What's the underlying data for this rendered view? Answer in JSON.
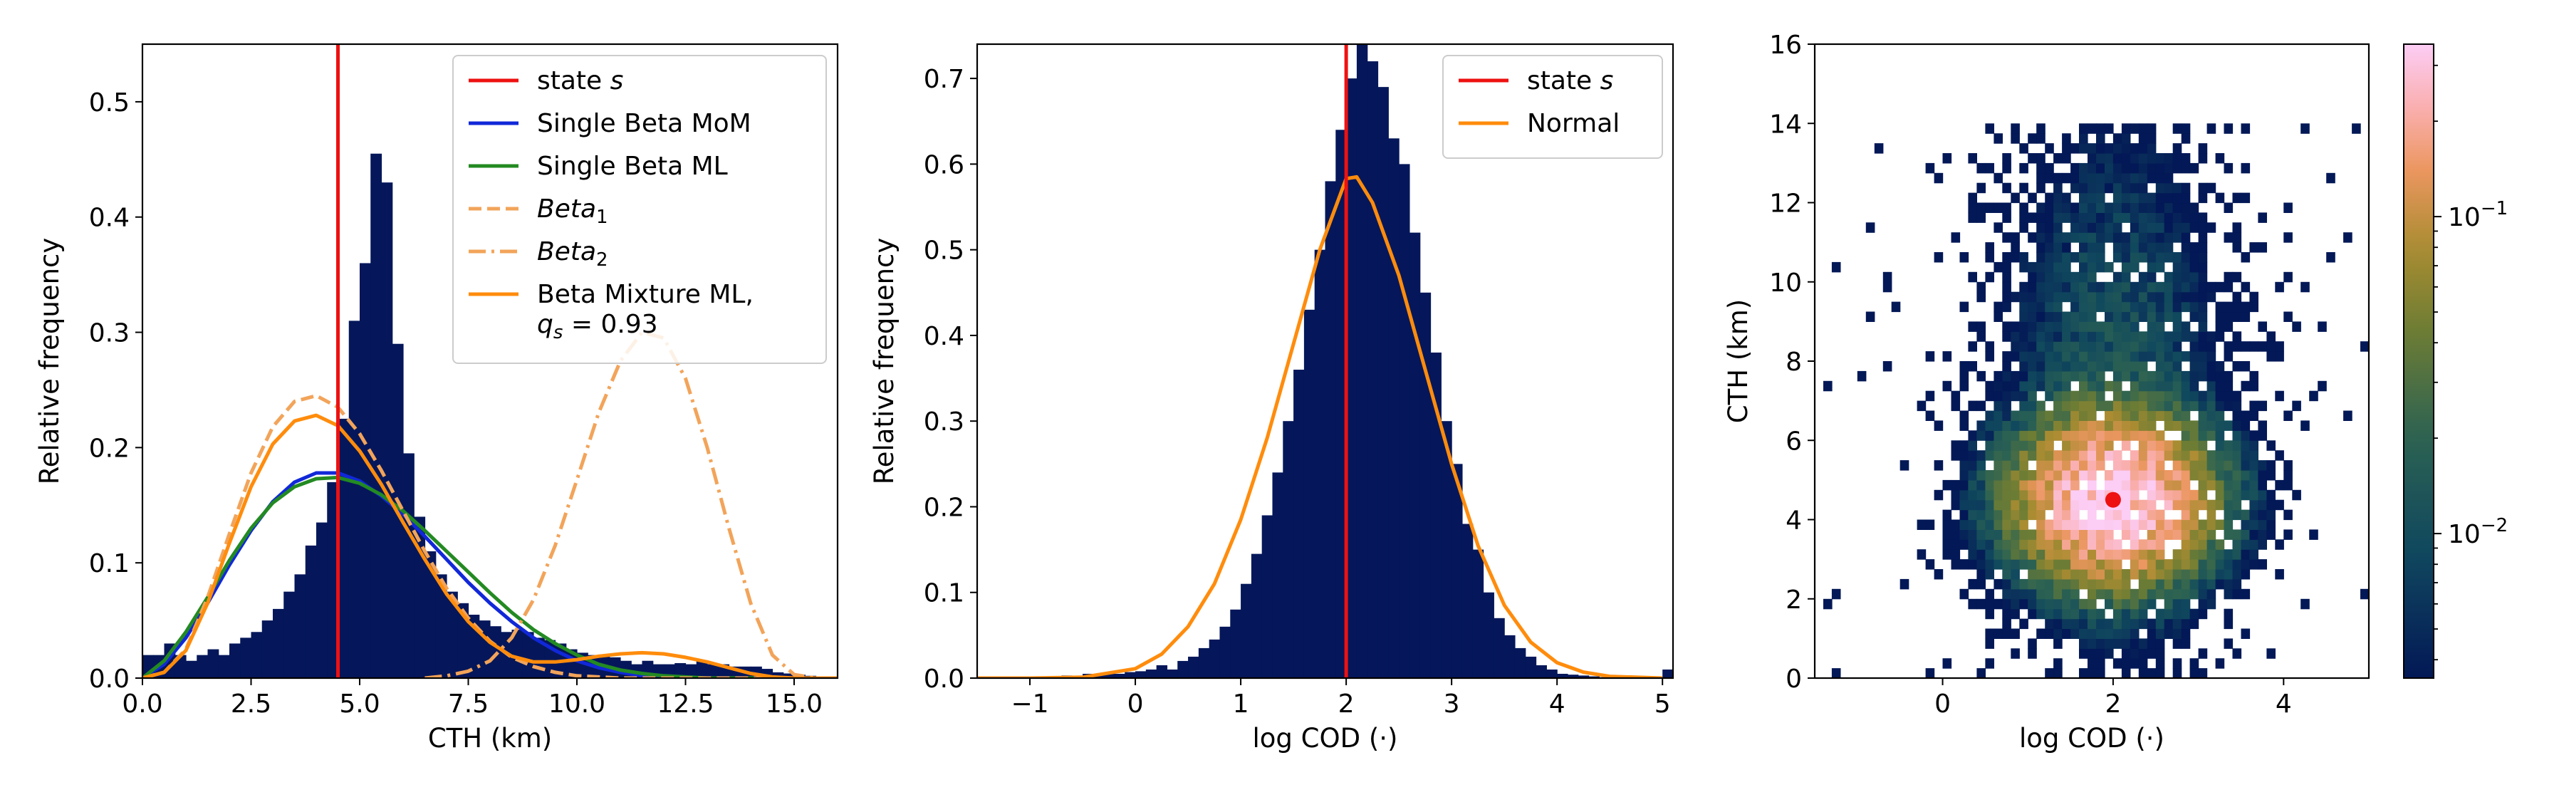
{
  "colors": {
    "hist": "#05175a",
    "state_line": "#ee1111",
    "beta_mom": "#1128d8",
    "beta_ml": "#238a22",
    "beta_components": "#f2a45a",
    "mixture": "#ff8c0c",
    "normal": "#ff8c0c",
    "marker": "#ee1111"
  },
  "chart_data": [
    {
      "type": "bar",
      "id": "cth_histogram",
      "xlabel": "CTH (km)",
      "ylabel": "Relative frequency",
      "xlim": [
        0,
        16
      ],
      "ylim": [
        0,
        0.55
      ],
      "xticks": [
        0.0,
        2.5,
        5.0,
        7.5,
        10.0,
        12.5,
        15.0
      ],
      "xtick_labels": [
        "0.0",
        "2.5",
        "5.0",
        "7.5",
        "10.0",
        "12.5",
        "15.0"
      ],
      "yticks": [
        0.0,
        0.1,
        0.2,
        0.3,
        0.4,
        0.5
      ],
      "ytick_labels": [
        "0.0",
        "0.1",
        "0.2",
        "0.3",
        "0.4",
        "0.5"
      ],
      "bin_width": 0.25,
      "bin_start": 0.0,
      "values": [
        0.02,
        0.02,
        0.03,
        0.02,
        0.015,
        0.02,
        0.025,
        0.02,
        0.03,
        0.035,
        0.04,
        0.05,
        0.06,
        0.075,
        0.09,
        0.115,
        0.135,
        0.17,
        0.225,
        0.31,
        0.36,
        0.455,
        0.43,
        0.29,
        0.195,
        0.14,
        0.11,
        0.09,
        0.075,
        0.065,
        0.055,
        0.05,
        0.045,
        0.04,
        0.042,
        0.04,
        0.035,
        0.033,
        0.03,
        0.025,
        0.022,
        0.02,
        0.02,
        0.018,
        0.015,
        0.012,
        0.015,
        0.012,
        0.012,
        0.013,
        0.012,
        0.015,
        0.012,
        0.012,
        0.01,
        0.01,
        0.01,
        0.008,
        0.005,
        0.004,
        0.003,
        0.002,
        0.001,
        0.0
      ],
      "state_value": 4.5,
      "curves": [
        {
          "name": "Single Beta MoM",
          "points": [
            [
              0,
              0.0
            ],
            [
              0.5,
              0.012
            ],
            [
              1,
              0.035
            ],
            [
              1.5,
              0.065
            ],
            [
              2,
              0.098
            ],
            [
              2.5,
              0.128
            ],
            [
              3,
              0.153
            ],
            [
              3.5,
              0.17
            ],
            [
              4,
              0.178
            ],
            [
              4.5,
              0.178
            ],
            [
              5,
              0.171
            ],
            [
              5.5,
              0.158
            ],
            [
              6,
              0.142
            ],
            [
              6.5,
              0.123
            ],
            [
              7,
              0.103
            ],
            [
              7.5,
              0.083
            ],
            [
              8,
              0.065
            ],
            [
              8.5,
              0.049
            ],
            [
              9,
              0.035
            ],
            [
              9.5,
              0.024
            ],
            [
              10,
              0.015
            ],
            [
              10.5,
              0.009
            ],
            [
              11,
              0.005
            ],
            [
              11.5,
              0.002
            ],
            [
              12,
              0.001
            ],
            [
              13,
              0.0
            ],
            [
              16,
              0.0
            ]
          ]
        },
        {
          "name": "Single Beta ML",
          "points": [
            [
              0,
              0.0
            ],
            [
              0.5,
              0.015
            ],
            [
              1,
              0.04
            ],
            [
              1.5,
              0.07
            ],
            [
              2,
              0.102
            ],
            [
              2.5,
              0.13
            ],
            [
              3,
              0.152
            ],
            [
              3.5,
              0.166
            ],
            [
              4,
              0.173
            ],
            [
              4.5,
              0.174
            ],
            [
              5,
              0.169
            ],
            [
              5.5,
              0.159
            ],
            [
              6,
              0.145
            ],
            [
              6.5,
              0.128
            ],
            [
              7,
              0.11
            ],
            [
              7.5,
              0.092
            ],
            [
              8,
              0.074
            ],
            [
              8.5,
              0.057
            ],
            [
              9,
              0.042
            ],
            [
              9.5,
              0.03
            ],
            [
              10,
              0.02
            ],
            [
              10.5,
              0.012
            ],
            [
              11,
              0.007
            ],
            [
              11.5,
              0.004
            ],
            [
              12,
              0.002
            ],
            [
              13,
              0.0
            ],
            [
              16,
              0.0
            ]
          ]
        },
        {
          "name": "Beta_1",
          "points": [
            [
              0,
              0.0
            ],
            [
              0.5,
              0.005
            ],
            [
              1,
              0.025
            ],
            [
              1.5,
              0.07
            ],
            [
              2,
              0.125
            ],
            [
              2.5,
              0.178
            ],
            [
              3,
              0.218
            ],
            [
              3.5,
              0.24
            ],
            [
              4,
              0.245
            ],
            [
              4.5,
              0.235
            ],
            [
              5,
              0.212
            ],
            [
              5.5,
              0.18
            ],
            [
              6,
              0.145
            ],
            [
              6.5,
              0.11
            ],
            [
              7,
              0.078
            ],
            [
              7.5,
              0.052
            ],
            [
              8,
              0.032
            ],
            [
              8.5,
              0.018
            ],
            [
              9,
              0.01
            ],
            [
              9.5,
              0.005
            ],
            [
              10,
              0.002
            ],
            [
              11,
              0.0
            ],
            [
              16,
              0.0
            ]
          ]
        },
        {
          "name": "Beta_2",
          "points": [
            [
              6.5,
              0.0
            ],
            [
              7,
              0.002
            ],
            [
              7.5,
              0.006
            ],
            [
              8,
              0.015
            ],
            [
              8.5,
              0.035
            ],
            [
              9,
              0.068
            ],
            [
              9.5,
              0.115
            ],
            [
              10,
              0.172
            ],
            [
              10.5,
              0.23
            ],
            [
              11,
              0.275
            ],
            [
              11.5,
              0.3
            ],
            [
              12,
              0.295
            ],
            [
              12.5,
              0.26
            ],
            [
              13,
              0.2
            ],
            [
              13.5,
              0.13
            ],
            [
              14,
              0.065
            ],
            [
              14.5,
              0.02
            ],
            [
              15,
              0.003
            ],
            [
              15.5,
              0.0
            ]
          ]
        },
        {
          "name": "Beta Mixture ML",
          "points": [
            [
              0,
              0.0
            ],
            [
              0.5,
              0.005
            ],
            [
              1,
              0.024
            ],
            [
              1.5,
              0.065
            ],
            [
              2,
              0.117
            ],
            [
              2.5,
              0.166
            ],
            [
              3,
              0.203
            ],
            [
              3.5,
              0.223
            ],
            [
              4,
              0.228
            ],
            [
              4.5,
              0.219
            ],
            [
              5,
              0.197
            ],
            [
              5.5,
              0.168
            ],
            [
              6,
              0.135
            ],
            [
              6.5,
              0.103
            ],
            [
              7,
              0.073
            ],
            [
              7.5,
              0.049
            ],
            [
              8,
              0.031
            ],
            [
              8.5,
              0.019
            ],
            [
              9,
              0.014
            ],
            [
              9.5,
              0.014
            ],
            [
              10,
              0.016
            ],
            [
              10.5,
              0.019
            ],
            [
              11,
              0.021
            ],
            [
              11.5,
              0.022
            ],
            [
              12,
              0.021
            ],
            [
              12.5,
              0.018
            ],
            [
              13,
              0.014
            ],
            [
              13.5,
              0.009
            ],
            [
              14,
              0.004
            ],
            [
              14.5,
              0.001
            ],
            [
              15,
              0.0
            ],
            [
              16,
              0.0
            ]
          ]
        }
      ],
      "legend": {
        "placement": "top-right",
        "entries": [
          {
            "label": "state ",
            "label_italic": "s",
            "style": "solid",
            "color_key": "state_line"
          },
          {
            "label": "Single Beta MoM",
            "style": "solid",
            "color_key": "beta_mom"
          },
          {
            "label": "Single Beta ML",
            "style": "solid",
            "color_key": "beta_ml"
          },
          {
            "label": "Beta",
            "label_sub": "1",
            "style": "dashed",
            "color_key": "beta_components"
          },
          {
            "label": "Beta",
            "label_sub": "2",
            "style": "dashdot",
            "color_key": "beta_components"
          },
          {
            "label": "Beta Mixture ML,",
            "label2": "q",
            "label2_sub": "s",
            "label2_tail": " = 0.93",
            "style": "solid",
            "color_key": "mixture"
          }
        ]
      }
    },
    {
      "type": "bar",
      "id": "logcod_histogram",
      "xlabel": "log COD (·)",
      "ylabel": "Relative frequency",
      "xlim": [
        -1.5,
        5.1
      ],
      "ylim": [
        0,
        0.74
      ],
      "xticks": [
        -1,
        0,
        1,
        2,
        3,
        4,
        5
      ],
      "xtick_labels": [
        "−1",
        "0",
        "1",
        "2",
        "3",
        "4",
        "5"
      ],
      "yticks": [
        0.0,
        0.1,
        0.2,
        0.3,
        0.4,
        0.5,
        0.6,
        0.7
      ],
      "ytick_labels": [
        "0.0",
        "0.1",
        "0.2",
        "0.3",
        "0.4",
        "0.5",
        "0.6",
        "0.7"
      ],
      "bin_width": 0.1,
      "bin_start": -1.5,
      "values": [
        0,
        0,
        0,
        0,
        0,
        0,
        0,
        0,
        0.003,
        0,
        0.005,
        0.004,
        0.006,
        0.005,
        0.007,
        0.008,
        0.01,
        0.015,
        0.01,
        0.02,
        0.025,
        0.035,
        0.045,
        0.06,
        0.08,
        0.11,
        0.145,
        0.19,
        0.24,
        0.3,
        0.36,
        0.43,
        0.5,
        0.58,
        0.64,
        0.7,
        0.74,
        0.72,
        0.69,
        0.63,
        0.6,
        0.52,
        0.45,
        0.38,
        0.3,
        0.25,
        0.18,
        0.15,
        0.1,
        0.07,
        0.05,
        0.035,
        0.025,
        0.015,
        0.01,
        0.005,
        0.004,
        0.003,
        0.002,
        0.001,
        0.001,
        0,
        0,
        0,
        0,
        0.01
      ],
      "state_value": 2.0,
      "curves": [
        {
          "name": "Normal",
          "points": [
            [
              -1.5,
              0.0
            ],
            [
              -1.0,
              0.0
            ],
            [
              -0.5,
              0.001
            ],
            [
              0,
              0.011
            ],
            [
              0.25,
              0.028
            ],
            [
              0.5,
              0.06
            ],
            [
              0.75,
              0.11
            ],
            [
              1,
              0.185
            ],
            [
              1.25,
              0.28
            ],
            [
              1.5,
              0.39
            ],
            [
              1.75,
              0.5
            ],
            [
              2,
              0.583
            ],
            [
              2.1,
              0.585
            ],
            [
              2.25,
              0.555
            ],
            [
              2.5,
              0.47
            ],
            [
              2.75,
              0.36
            ],
            [
              3,
              0.25
            ],
            [
              3.25,
              0.155
            ],
            [
              3.5,
              0.085
            ],
            [
              3.75,
              0.042
            ],
            [
              4,
              0.018
            ],
            [
              4.25,
              0.007
            ],
            [
              4.5,
              0.002
            ],
            [
              5,
              0.0
            ]
          ]
        }
      ],
      "legend": {
        "placement": "top-right",
        "entries": [
          {
            "label": "state ",
            "label_italic": "s",
            "style": "solid",
            "color_key": "state_line"
          },
          {
            "label": "Normal",
            "style": "solid",
            "color_key": "normal"
          }
        ]
      }
    },
    {
      "type": "heatmap",
      "id": "joint_histogram",
      "xlabel": "log COD (·)",
      "ylabel": "CTH (km)",
      "xlim": [
        -1.5,
        5.0
      ],
      "ylim": [
        0,
        16
      ],
      "xticks": [
        0,
        2,
        4
      ],
      "xtick_labels": [
        "0",
        "2",
        "4"
      ],
      "yticks": [
        0,
        2,
        4,
        6,
        8,
        10,
        12,
        14,
        16
      ],
      "ytick_labels": [
        "0",
        "2",
        "4",
        "6",
        "8",
        "10",
        "12",
        "14",
        "16"
      ],
      "scale": "log",
      "center": [
        2.0,
        4.5
      ],
      "colorbar": {
        "scale": "log",
        "range": [
          0.0035,
          0.35
        ],
        "tick_labels": [
          {
            "base": "10",
            "exp": "−1",
            "value": 0.1
          },
          {
            "base": "10",
            "exp": "−2",
            "value": 0.01
          }
        ]
      },
      "marker_point": [
        2.0,
        4.5
      ]
    }
  ]
}
